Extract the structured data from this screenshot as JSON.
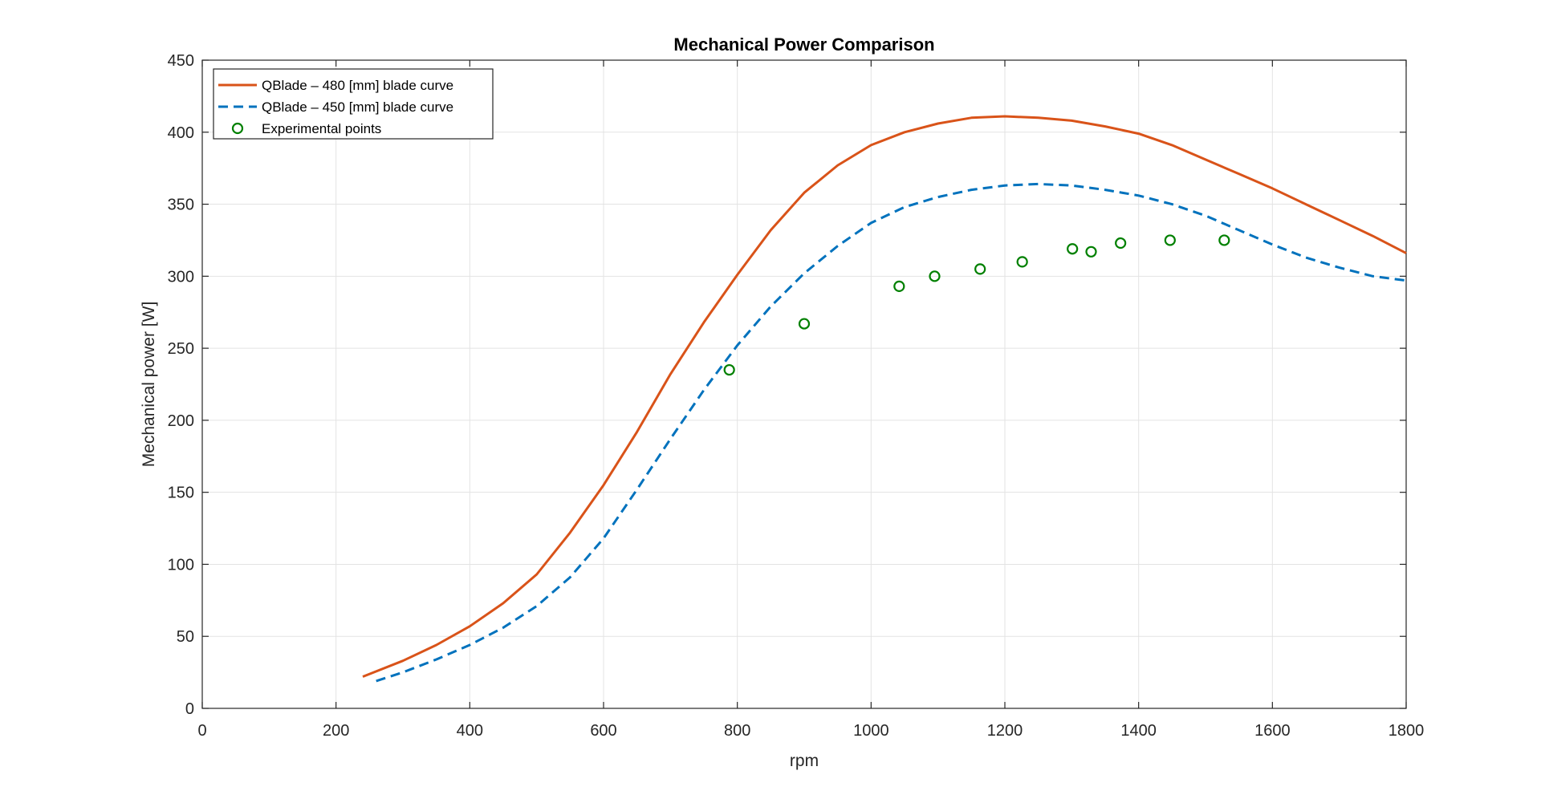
{
  "chart_data": {
    "type": "line",
    "title": "Mechanical Power Comparison",
    "xlabel": "rpm",
    "ylabel": "Mechanical power [W]",
    "xlim": [
      0,
      1800
    ],
    "ylim": [
      0,
      450
    ],
    "xticks": [
      0,
      200,
      400,
      600,
      800,
      1000,
      1200,
      1400,
      1600,
      1800
    ],
    "yticks": [
      0,
      50,
      100,
      150,
      200,
      250,
      300,
      350,
      400,
      450
    ],
    "grid": true,
    "legend_position": "top-left",
    "series": [
      {
        "name": "QBlade – 480 [mm] blade curve",
        "style": "solid",
        "color": "#D95319",
        "x": [
          240,
          300,
          350,
          400,
          450,
          500,
          550,
          600,
          650,
          700,
          750,
          800,
          850,
          900,
          950,
          1000,
          1050,
          1100,
          1150,
          1200,
          1250,
          1300,
          1350,
          1400,
          1450,
          1500,
          1550,
          1600,
          1650,
          1700,
          1750,
          1800
        ],
        "y": [
          22,
          33,
          44,
          57,
          73,
          93,
          122,
          155,
          192,
          232,
          268,
          301,
          332,
          358,
          377,
          391,
          400,
          406,
          410,
          411,
          410,
          408,
          404,
          399,
          391,
          381,
          371,
          361,
          350,
          339,
          328,
          316
        ]
      },
      {
        "name": "QBlade – 450 [mm] blade curve",
        "style": "dashed",
        "color": "#0072BD",
        "x": [
          260,
          300,
          350,
          400,
          450,
          500,
          550,
          600,
          650,
          700,
          750,
          800,
          850,
          900,
          950,
          1000,
          1050,
          1100,
          1150,
          1200,
          1250,
          1300,
          1350,
          1400,
          1450,
          1500,
          1550,
          1600,
          1650,
          1700,
          1750,
          1800
        ],
        "y": [
          19,
          25,
          34,
          44,
          56,
          71,
          91,
          118,
          152,
          187,
          221,
          252,
          279,
          302,
          321,
          337,
          348,
          355,
          360,
          363,
          364,
          363,
          360,
          356,
          350,
          342,
          332,
          322,
          313,
          306,
          300,
          297
        ]
      },
      {
        "name": "Experimental points",
        "style": "markers",
        "color": "#008000",
        "x": [
          788,
          900,
          1042,
          1095,
          1163,
          1226,
          1301,
          1329,
          1373,
          1447,
          1528
        ],
        "y": [
          235,
          267,
          293,
          300,
          305,
          310,
          319,
          317,
          323,
          325,
          325
        ]
      }
    ]
  }
}
